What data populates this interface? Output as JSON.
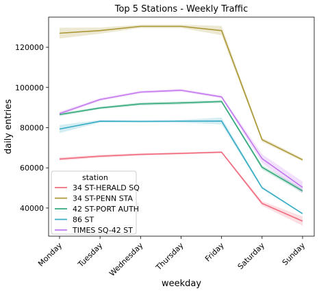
{
  "chart_data": {
    "type": "line",
    "title": "Top 5 Stations - Weekly Traffic",
    "xlabel": "weekday",
    "ylabel": "daily entries",
    "categories": [
      "Monday",
      "Tuesday",
      "Wednesday",
      "Thursday",
      "Friday",
      "Saturday",
      "Sunday"
    ],
    "ylim": [
      26000,
      135000
    ],
    "yticks": [
      40000,
      60000,
      80000,
      100000,
      120000
    ],
    "ytick_labels": [
      "40000",
      "60000",
      "80000",
      "100000",
      "120000"
    ],
    "grid": false,
    "legend": {
      "title": "station",
      "placement": "lower-left"
    },
    "series": [
      {
        "name": "34 ST-HERALD SQ",
        "color": "#f06b7e",
        "values": [
          64400,
          65800,
          66700,
          67200,
          67800,
          42300,
          33500
        ],
        "ci_low": [
          63600,
          65100,
          66100,
          66700,
          67300,
          41200,
          31200
        ],
        "ci_high": [
          65200,
          66500,
          67300,
          67700,
          68300,
          43400,
          35800
        ]
      },
      {
        "name": "34 ST-PENN STA",
        "color": "#aa9734",
        "values": [
          127000,
          128300,
          130400,
          130400,
          128300,
          74000,
          64000
        ],
        "ci_low": [
          124300,
          126800,
          129600,
          129600,
          126000,
          73000,
          63200
        ],
        "ci_high": [
          129700,
          129800,
          131200,
          131200,
          130600,
          75000,
          64800
        ]
      },
      {
        "name": "42 ST-PORT AUTH",
        "color": "#33a87c",
        "values": [
          86500,
          89800,
          91800,
          92300,
          93000,
          60300,
          48500
        ],
        "ci_low": [
          85700,
          89200,
          91000,
          91500,
          92300,
          59200,
          47400
        ],
        "ci_high": [
          87300,
          90400,
          92600,
          93100,
          93700,
          61400,
          49600
        ]
      },
      {
        "name": "86 ST",
        "color": "#36abc4",
        "values": [
          79300,
          83200,
          83100,
          83200,
          83300,
          50100,
          37200
        ],
        "ci_low": [
          77300,
          82600,
          82500,
          82500,
          81600,
          49400,
          36800
        ],
        "ci_high": [
          81300,
          83800,
          83700,
          83900,
          85000,
          50800,
          37600
        ]
      },
      {
        "name": "TIMES SQ-42 ST",
        "color": "#c377f0",
        "values": [
          87000,
          94000,
          97700,
          98600,
          95300,
          64600,
          50300
        ],
        "ci_low": [
          86100,
          93300,
          97000,
          97900,
          94600,
          62400,
          47400
        ],
        "ci_high": [
          87900,
          94700,
          98400,
          99300,
          96000,
          66800,
          53200
        ]
      }
    ]
  }
}
